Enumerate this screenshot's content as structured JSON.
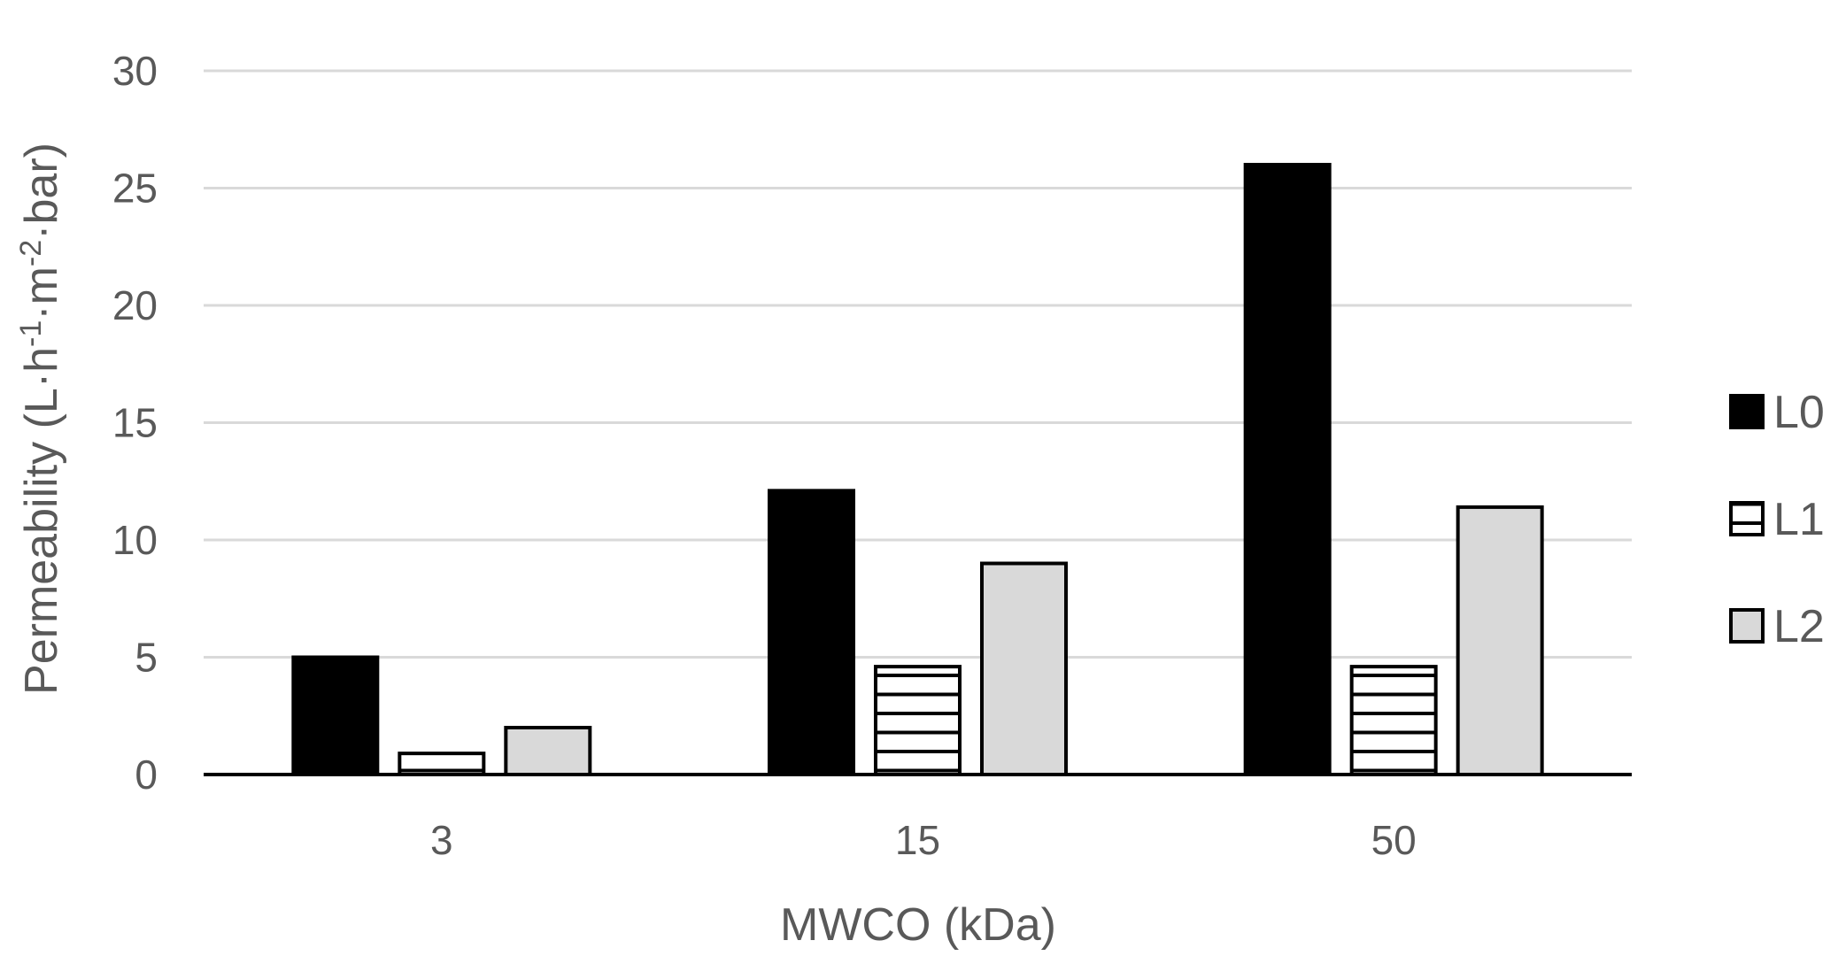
{
  "chart_data": {
    "type": "bar",
    "title": "",
    "xlabel": "MWCO (kDa)",
    "ylabel_parts": {
      "base": "Permeability (L·h",
      "exp1": "-1",
      "mid": "·m",
      "exp2": "-2",
      "end": "·bar)"
    },
    "categories": [
      "3",
      "15",
      "50"
    ],
    "series": [
      {
        "name": "L0",
        "values": [
          5,
          12.1,
          26
        ],
        "fill": "#000000",
        "pattern": "solid"
      },
      {
        "name": "L1",
        "values": [
          0.9,
          4.6,
          4.6
        ],
        "fill": "#ffffff",
        "pattern": "horizontal-lines"
      },
      {
        "name": "L2",
        "values": [
          2,
          9,
          11.4
        ],
        "fill": "#d9d9d9",
        "pattern": "solid"
      }
    ],
    "ylim": [
      0,
      30
    ],
    "yticks": [
      0,
      5,
      10,
      15,
      20,
      25,
      30
    ],
    "grid": true,
    "legend_position": "right",
    "colors": {
      "gridline": "#d9d9d9",
      "axis": "#000000",
      "text": "#595959"
    }
  }
}
